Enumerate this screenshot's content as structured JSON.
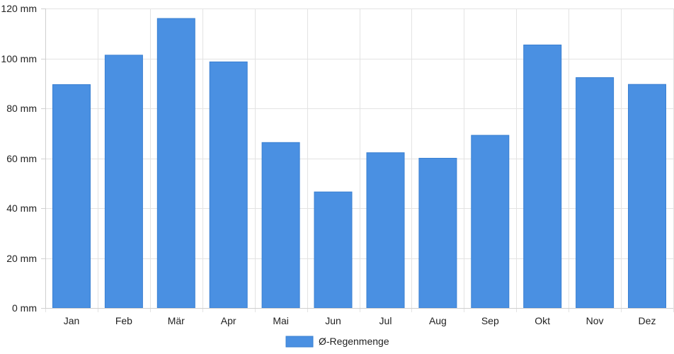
{
  "chart_data": {
    "type": "bar",
    "categories": [
      "Jan",
      "Feb",
      "Mär",
      "Apr",
      "Mai",
      "Jun",
      "Jul",
      "Aug",
      "Sep",
      "Okt",
      "Nov",
      "Dez"
    ],
    "series": [
      {
        "name": "Ø-Regenmenge",
        "values": [
          89.5,
          101.3,
          116.0,
          98.6,
          66.3,
          46.5,
          62.2,
          60.0,
          69.2,
          105.4,
          92.3,
          89.6
        ],
        "color": "#4a90e2"
      }
    ],
    "ylim": [
      0,
      120
    ],
    "yticks": [
      0,
      20,
      40,
      60,
      80,
      100,
      120
    ],
    "y_unit": "mm",
    "grid": true,
    "legend": {
      "position": "bottom",
      "label": "Ø-Regenmenge"
    },
    "title": "",
    "xlabel": "",
    "ylabel": ""
  }
}
